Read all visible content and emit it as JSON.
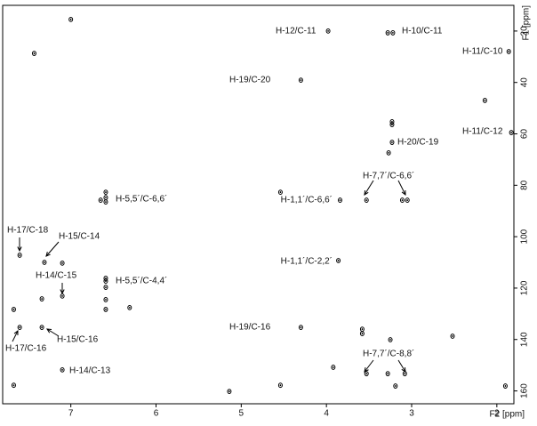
{
  "chart_data": {
    "type": "scatter",
    "xlabel": "F2 [ppm]",
    "ylabel": "F1 [ppm]",
    "xlim": [
      7.8,
      1.8
    ],
    "ylim": [
      10,
      165
    ],
    "xticks": [
      7,
      6,
      5,
      4,
      3,
      2
    ],
    "yticks": [
      20,
      40,
      60,
      80,
      100,
      120,
      140,
      160
    ],
    "color": "#000000",
    "x": [
      7.43,
      7.0,
      3.98,
      3.28,
      3.22,
      1.86,
      4.3,
      2.14,
      3.23,
      3.23,
      1.83,
      3.23,
      3.27,
      4.54,
      6.59,
      6.59,
      6.59,
      6.65,
      3.84,
      3.53,
      3.11,
      3.05,
      7.6,
      7.31,
      7.1,
      3.86,
      6.59,
      6.59,
      6.59,
      7.1,
      7.34,
      6.59,
      6.59,
      6.31,
      7.67,
      7.6,
      7.34,
      4.3,
      3.58,
      3.58,
      3.25,
      2.52,
      3.53,
      3.28,
      3.08,
      3.92,
      4.54,
      5.14,
      7.1,
      7.67,
      3.19,
      1.9
    ],
    "values": [
      28.7,
      15.5,
      20.0,
      20.7,
      20.7,
      28.0,
      39.1,
      47.0,
      55.3,
      56.4,
      59.5,
      63.3,
      67.4,
      82.7,
      82.7,
      84.8,
      86.5,
      85.8,
      85.8,
      85.8,
      85.8,
      85.8,
      107.2,
      110.0,
      110.3,
      109.3,
      116.2,
      117.3,
      119.7,
      123.1,
      124.2,
      124.5,
      128.3,
      127.6,
      128.3,
      135.3,
      135.3,
      135.3,
      136.0,
      137.7,
      140.1,
      138.7,
      153.3,
      153.3,
      153.3,
      150.8,
      157.8,
      160.2,
      151.8,
      157.8,
      158.1,
      158.1
    ],
    "annotations": [
      "H-12/C-11",
      "H-10/C-11",
      "H-11/C-10",
      "H-19/C-20",
      "H-11/C-12",
      "H-20/C-19",
      "H-7,7´/C-6,6´",
      "H-5,5´/C-6,6´",
      "H-1,1´/C-6,6´",
      "H-17/C-18",
      "H-15/C-14",
      "H-1,1´/C-2,2´",
      "H-14/C-15",
      "H-5,5´/C-4,4´",
      "H-19/C-16",
      "H-15/C-16",
      "H-17/C-16",
      "H-7,7´/C-8,8´",
      "H-14/C-13"
    ]
  }
}
